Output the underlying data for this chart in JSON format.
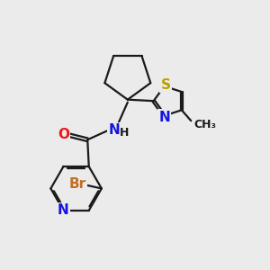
{
  "bg_color": "#ebebeb",
  "bond_color": "#1a1a1a",
  "bond_width": 1.6,
  "dbo": 0.06,
  "atom_colors": {
    "N": "#1515e0",
    "O": "#ee1515",
    "S": "#b8a000",
    "Br": "#c07020",
    "H": "#1a1a1a",
    "C": "#1a1a1a"
  },
  "fs_large": 11,
  "fs_med": 10,
  "fs_small": 9
}
